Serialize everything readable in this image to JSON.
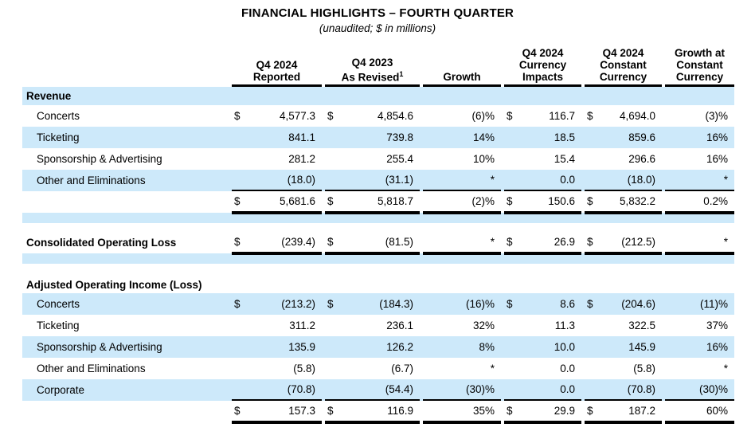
{
  "page": {
    "title": "FINANCIAL HIGHLIGHTS – FOURTH QUARTER",
    "subtitle": "(unaudited; $ in millions)"
  },
  "colors": {
    "stripe": "#cde9fa",
    "text": "#000000",
    "rule": "#000000"
  },
  "table": {
    "columns": {
      "reported": {
        "l1": "Q4 2024",
        "l2": "Reported"
      },
      "revised": {
        "l1": "Q4 2023",
        "l2": "As Revised",
        "sup": "1"
      },
      "growth": {
        "l1": "Growth"
      },
      "currency_impacts": {
        "l1": "Q4 2024",
        "l2": "Currency",
        "l3": "Impacts"
      },
      "constant_currency": {
        "l1": "Q4 2024",
        "l2": "Constant",
        "l3": "Currency"
      },
      "growth_constant": {
        "l1": "Growth at",
        "l2": "Constant",
        "l3": "Currency"
      }
    },
    "revenue": {
      "heading": "Revenue",
      "rows": [
        {
          "label": "Concerts",
          "c1d": "$",
          "c1": "4,577.3",
          "c2d": "$",
          "c2": "4,854.6",
          "g": "(6)%",
          "c4d": "$",
          "c4": "116.7",
          "c5d": "$",
          "c5": "4,694.0",
          "g2": "(3)%"
        },
        {
          "label": "Ticketing",
          "c1d": "",
          "c1": "841.1",
          "c2d": "",
          "c2": "739.8",
          "g": "14%",
          "c4d": "",
          "c4": "18.5",
          "c5d": "",
          "c5": "859.6",
          "g2": "16%"
        },
        {
          "label": "Sponsorship & Advertising",
          "c1d": "",
          "c1": "281.2",
          "c2d": "",
          "c2": "255.4",
          "g": "10%",
          "c4d": "",
          "c4": "15.4",
          "c5d": "",
          "c5": "296.6",
          "g2": "16%"
        },
        {
          "label": "Other and Eliminations",
          "c1d": "",
          "c1": "(18.0)",
          "c2d": "",
          "c2": "(31.1)",
          "g": "*",
          "c4d": "",
          "c4": "0.0",
          "c5d": "",
          "c5": "(18.0)",
          "g2": "*"
        }
      ],
      "total": {
        "c1d": "$",
        "c1": "5,681.6",
        "c2d": "$",
        "c2": "5,818.7",
        "g": "(2)%",
        "c4d": "$",
        "c4": "150.6",
        "c5d": "$",
        "c5": "5,832.2",
        "g2": "0.2%"
      }
    },
    "operating_loss": {
      "label": "Consolidated Operating Loss",
      "c1d": "$",
      "c1": "(239.4)",
      "c2d": "$",
      "c2": "(81.5)",
      "g": "*",
      "c4d": "$",
      "c4": "26.9",
      "c5d": "$",
      "c5": "(212.5)",
      "g2": "*"
    },
    "adjusted": {
      "heading": "Adjusted Operating Income (Loss)",
      "rows": [
        {
          "label": "Concerts",
          "c1d": "$",
          "c1": "(213.2)",
          "c2d": "$",
          "c2": "(184.3)",
          "g": "(16)%",
          "c4d": "$",
          "c4": "8.6",
          "c5d": "$",
          "c5": "(204.6)",
          "g2": "(11)%"
        },
        {
          "label": "Ticketing",
          "c1d": "",
          "c1": "311.2",
          "c2d": "",
          "c2": "236.1",
          "g": "32%",
          "c4d": "",
          "c4": "11.3",
          "c5d": "",
          "c5": "322.5",
          "g2": "37%"
        },
        {
          "label": "Sponsorship & Advertising",
          "c1d": "",
          "c1": "135.9",
          "c2d": "",
          "c2": "126.2",
          "g": "8%",
          "c4d": "",
          "c4": "10.0",
          "c5d": "",
          "c5": "145.9",
          "g2": "16%"
        },
        {
          "label": "Other and Eliminations",
          "c1d": "",
          "c1": "(5.8)",
          "c2d": "",
          "c2": "(6.7)",
          "g": "*",
          "c4d": "",
          "c4": "0.0",
          "c5d": "",
          "c5": "(5.8)",
          "g2": "*"
        },
        {
          "label": "Corporate",
          "c1d": "",
          "c1": "(70.8)",
          "c2d": "",
          "c2": "(54.4)",
          "g": "(30)%",
          "c4d": "",
          "c4": "0.0",
          "c5d": "",
          "c5": "(70.8)",
          "g2": "(30)%"
        }
      ],
      "total": {
        "c1d": "$",
        "c1": "157.3",
        "c2d": "$",
        "c2": "116.9",
        "g": "35%",
        "c4d": "$",
        "c4": "29.9",
        "c5d": "$",
        "c5": "187.2",
        "g2": "60%"
      }
    }
  }
}
